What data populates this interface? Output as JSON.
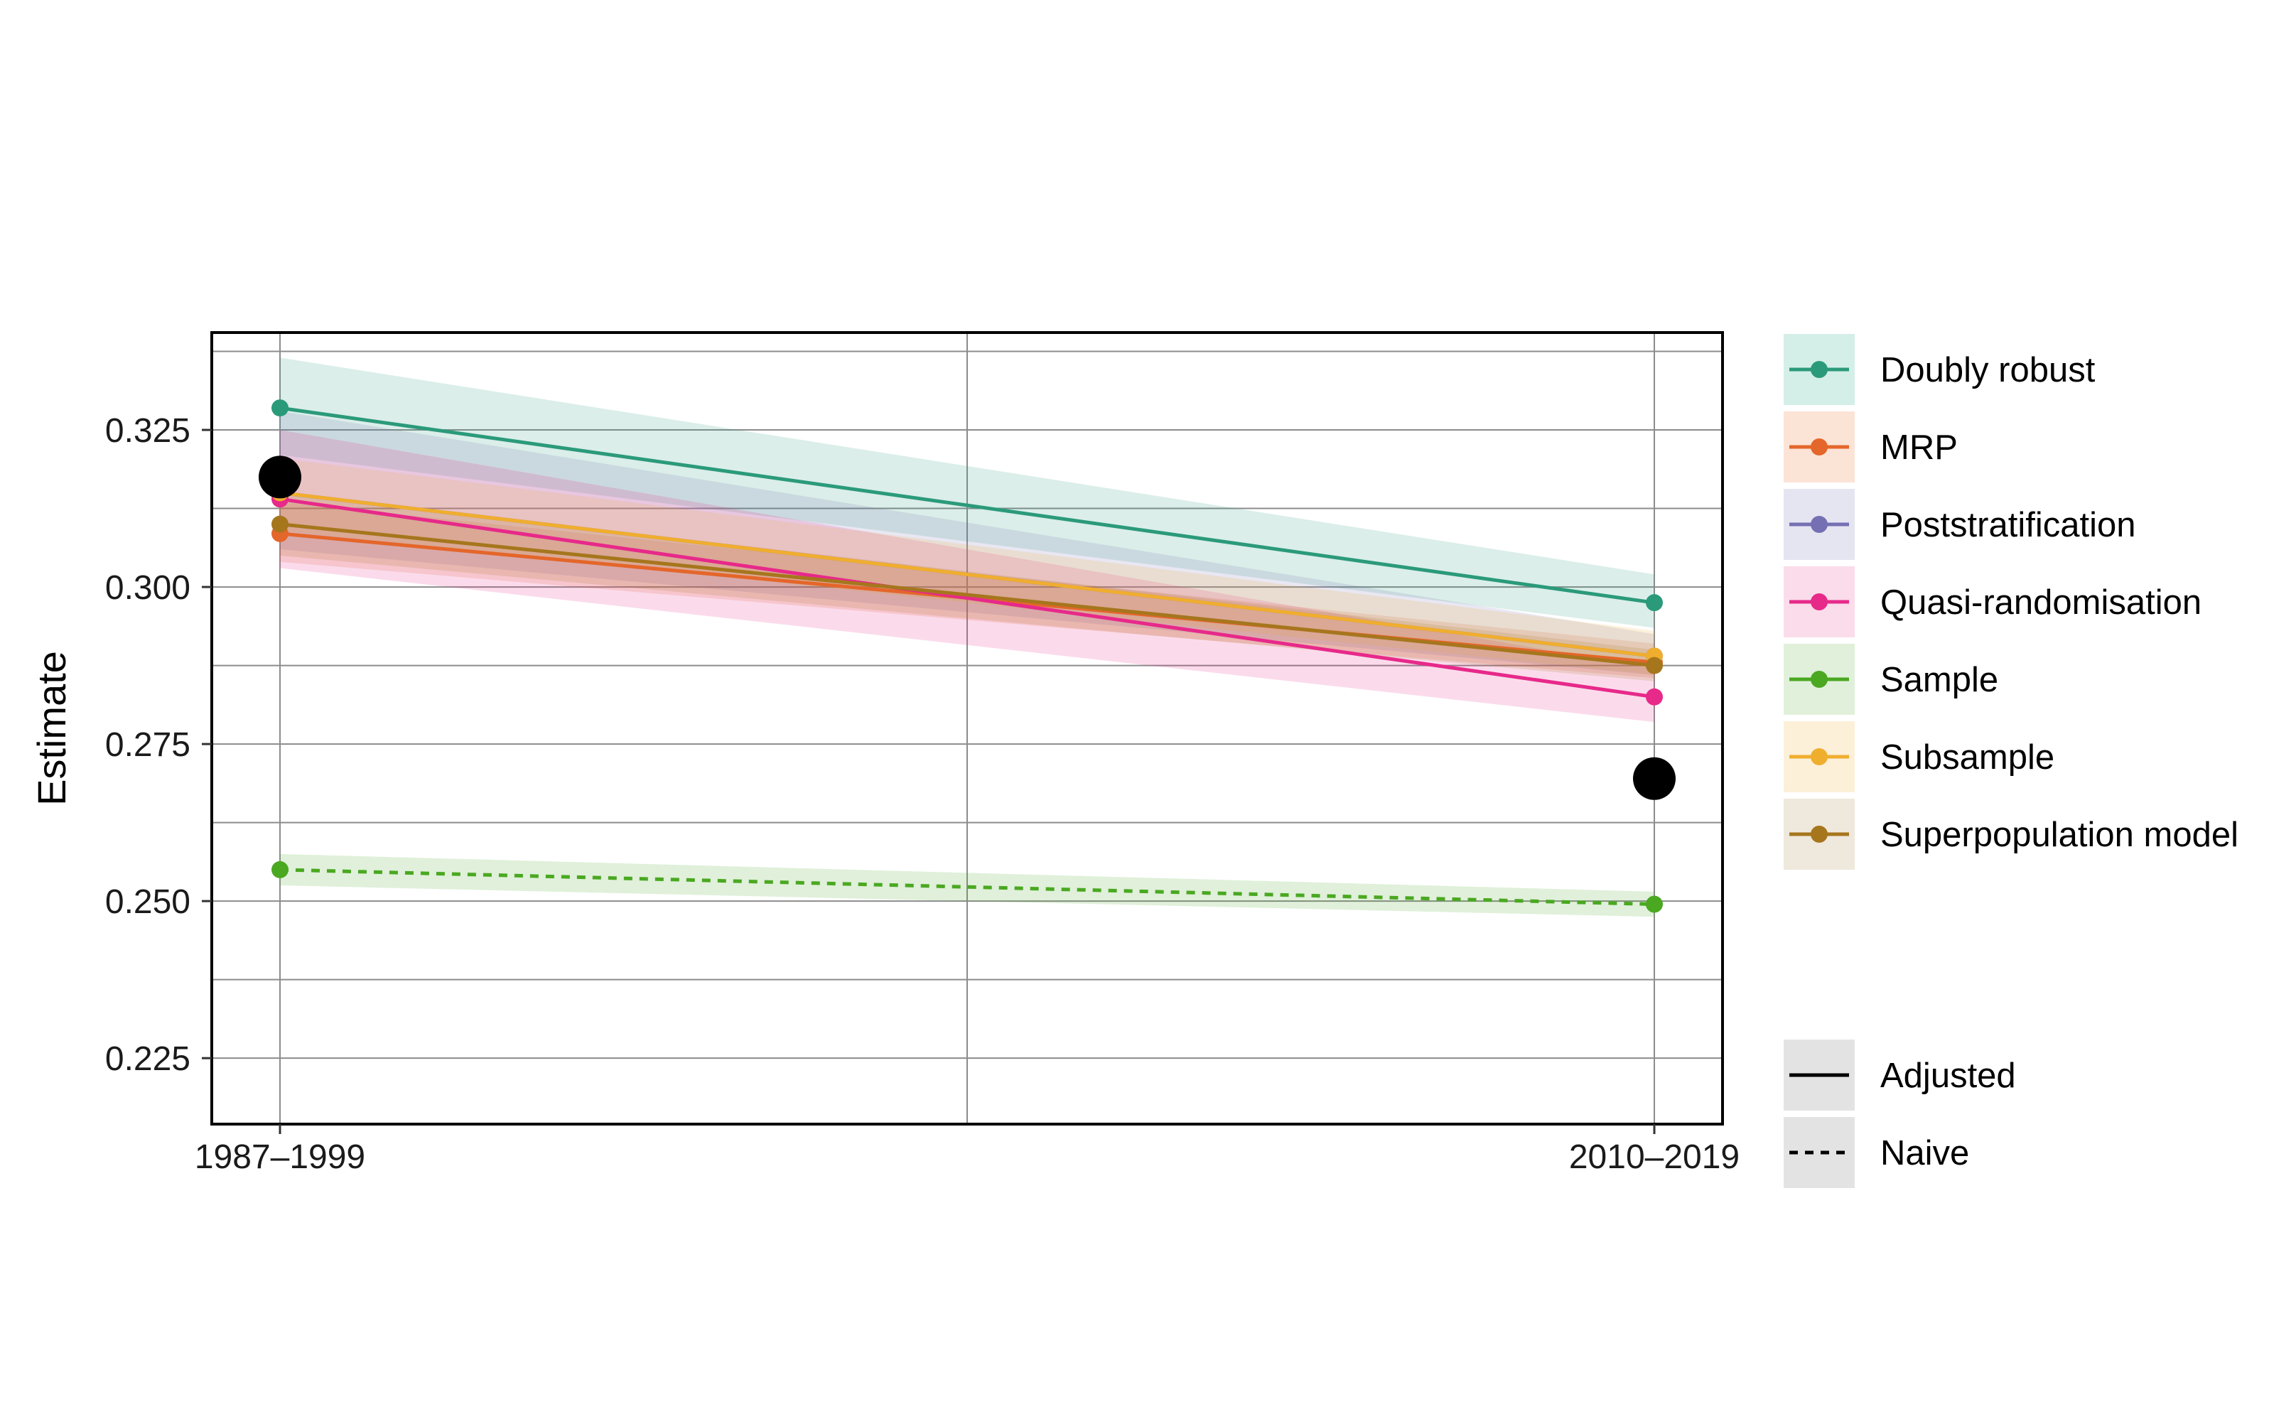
{
  "chart_data": {
    "type": "line",
    "title": "",
    "xlabel": "",
    "ylabel": "Estimate",
    "categories": [
      "1987–1999",
      "2010–2019"
    ],
    "ylim": [
      0.2145,
      0.3405
    ],
    "yticks": [
      0.225,
      0.25,
      0.275,
      0.3,
      0.325
    ],
    "ytick_labels": [
      "0.225",
      "0.250",
      "0.275",
      "0.300",
      "0.325"
    ],
    "grid": true,
    "legend_position": "right",
    "series": [
      {
        "name": "Doubly robust",
        "color": "#2b9a7a",
        "linetype": "solid",
        "values": [
          0.3285,
          0.2975
        ],
        "ci_low": [
          0.321,
          0.2935
        ],
        "ci_high": [
          0.3365,
          0.302
        ]
      },
      {
        "name": "MRP",
        "color": "#e4662a",
        "linetype": "solid",
        "values": [
          0.3085,
          0.288
        ],
        "ci_low": [
          0.304,
          0.2855
        ],
        "ci_high": [
          0.3135,
          0.291
        ]
      },
      {
        "name": "Poststratification",
        "color": "#7570b3",
        "linetype": "solid",
        "values": [
          0.315,
          0.289
        ],
        "ci_low": [
          0.306,
          0.286
        ],
        "ci_high": [
          0.328,
          0.2925
        ]
      },
      {
        "name": "Quasi-randomisation",
        "color": "#e7298a",
        "linetype": "solid",
        "values": [
          0.314,
          0.2825
        ],
        "ci_low": [
          0.303,
          0.2785
        ],
        "ci_high": [
          0.325,
          0.287
        ]
      },
      {
        "name": "Sample",
        "color": "#4aa821",
        "linetype": "dashed",
        "values": [
          0.255,
          0.2495
        ],
        "ci_low": [
          0.2525,
          0.2475
        ],
        "ci_high": [
          0.2575,
          0.2515
        ]
      },
      {
        "name": "Subsample",
        "color": "#f0ae2f",
        "linetype": "solid",
        "values": [
          0.315,
          0.289
        ],
        "ci_low": [
          0.309,
          0.286
        ],
        "ci_high": [
          0.3205,
          0.293
        ]
      },
      {
        "name": "Superpopulation model",
        "color": "#a6761d",
        "linetype": "solid",
        "values": [
          0.31,
          0.2875
        ],
        "ci_low": [
          0.305,
          0.285
        ],
        "ci_high": [
          0.315,
          0.29
        ]
      }
    ],
    "reference_points": {
      "values": [
        0.3175,
        0.2695
      ],
      "color": "#000000"
    },
    "legend_colour": {
      "items": [
        {
          "label": "Doubly robust",
          "color": "#2b9a7a",
          "band": "#d4efe8"
        },
        {
          "label": "MRP",
          "color": "#e4662a",
          "band": "#fbe3d6"
        },
        {
          "label": "Poststratification",
          "color": "#7570b3",
          "band": "#e5e4f1"
        },
        {
          "label": "Quasi-randomisation",
          "color": "#e7298a",
          "band": "#fbdcea"
        },
        {
          "label": "Sample",
          "color": "#4aa821",
          "band": "#e1f0da"
        },
        {
          "label": "Subsample",
          "color": "#f0ae2f",
          "band": "#fcf0d9"
        },
        {
          "label": "Superpopulation model",
          "color": "#a6761d",
          "band": "#efe8dc"
        }
      ]
    },
    "legend_linetype": {
      "items": [
        {
          "label": "Adjusted",
          "linetype": "solid"
        },
        {
          "label": "Naive",
          "linetype": "dashed"
        }
      ]
    }
  }
}
